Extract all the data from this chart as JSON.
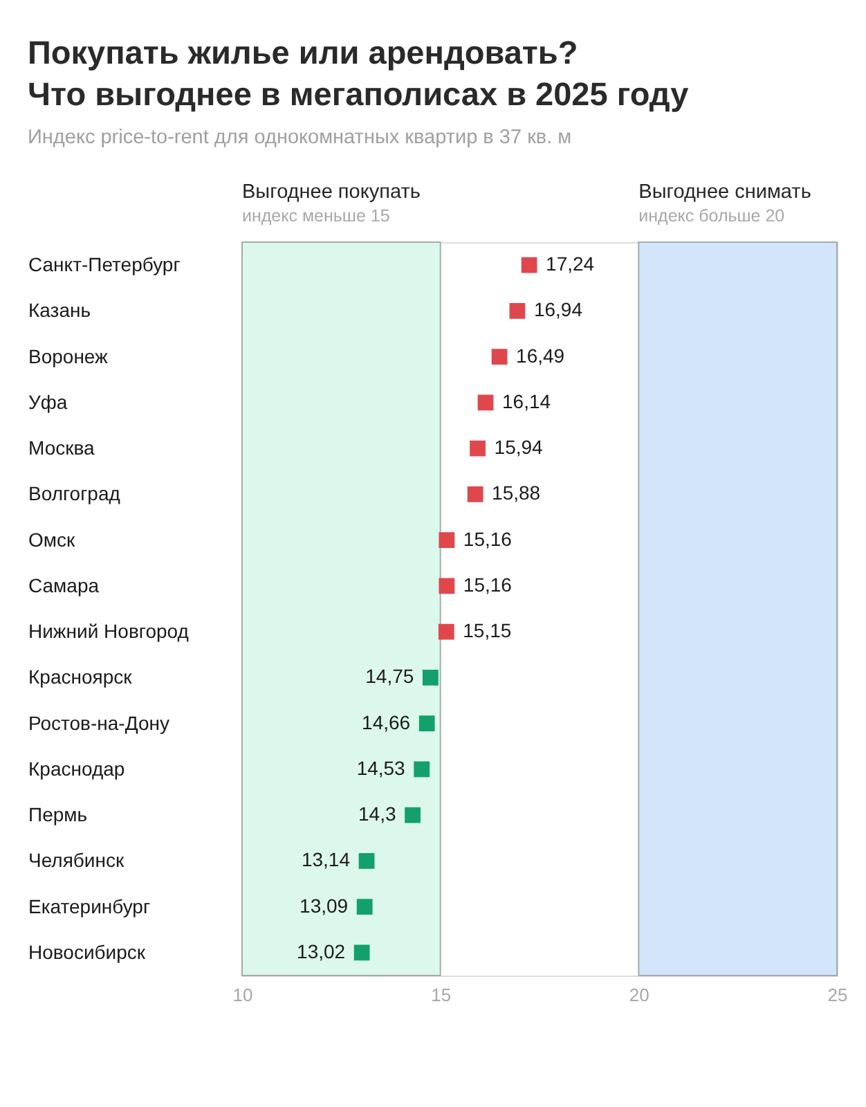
{
  "chart_data": {
    "type": "scatter",
    "orientation": "horizontal",
    "marker": "square",
    "title": "Покупать жилье или арендовать?\nЧто выгоднее в мегаполисах в 2025 году",
    "subtitle": "Индекс price-to-rent для однокомнатных квартир в 37 кв. м",
    "categories": [
      "Санкт-Петербург",
      "Казань",
      "Воронеж",
      "Уфа",
      "Москва",
      "Волгоград",
      "Омск",
      "Самара",
      "Нижний Новгород",
      "Красноярск",
      "Ростов-на-Дону",
      "Краснодар",
      "Пермь",
      "Челябинск",
      "Екатеринбург",
      "Новосибирск"
    ],
    "values": [
      17.24,
      16.94,
      16.49,
      16.14,
      15.94,
      15.88,
      15.16,
      15.16,
      15.15,
      14.75,
      14.66,
      14.53,
      14.3,
      13.14,
      13.09,
      13.02
    ],
    "colors": [
      "#e0474c",
      "#e0474c",
      "#e0474c",
      "#e0474c",
      "#e0474c",
      "#e0474c",
      "#e0474c",
      "#e0474c",
      "#e0474c",
      "#13a06a",
      "#13a06a",
      "#13a06a",
      "#13a06a",
      "#13a06a",
      "#13a06a",
      "#13a06a"
    ],
    "value_labels": [
      "17,24",
      "16,94",
      "16,49",
      "16,14",
      "15,94",
      "15,88",
      "15,16",
      "15,16",
      "15,15",
      "14,75",
      "14,66",
      "14,53",
      "14,3",
      "13,14",
      "13,09",
      "13,02"
    ],
    "xlim": [
      10,
      25
    ],
    "xticks": [
      10,
      15,
      20,
      25
    ],
    "grid": false,
    "bands": [
      {
        "axis": "x",
        "from": 10,
        "to": 15,
        "label": "Выгоднее покупать\nиндекс меньше 15",
        "color": "#dcf8ec"
      },
      {
        "axis": "x",
        "from": 20,
        "to": 25,
        "label": "Выгоднее снимать\nиндекс больше 20",
        "color": "#d3e5fb"
      }
    ]
  }
}
